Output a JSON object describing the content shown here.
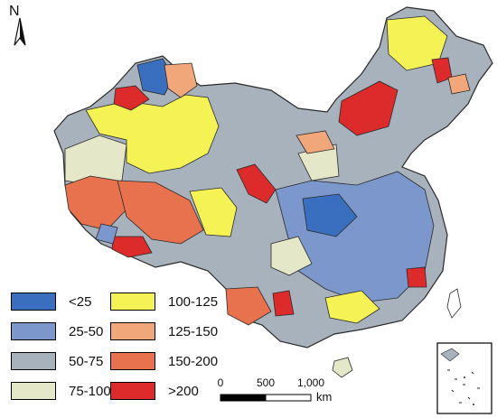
{
  "north_arrow": {
    "label": "N",
    "icon": "north-arrow-icon"
  },
  "legend": [
    {
      "label": "<25",
      "color": "#3a6fbf"
    },
    {
      "label": "25-50",
      "color": "#7b97cb"
    },
    {
      "label": "50-75",
      "color": "#a7b2bc"
    },
    {
      "label": "75-100",
      "color": "#e4e8c8"
    },
    {
      "label": "100-125",
      "color": "#f5f256"
    },
    {
      "label": "125-150",
      "color": "#f2a77a"
    },
    {
      "label": "150-200",
      "color": "#e8714e"
    },
    {
      "label": ">200",
      "color": "#dd2b2b"
    }
  ],
  "scale_bar": {
    "ticks": [
      "0",
      "500",
      "1,000"
    ],
    "unit": "km"
  },
  "colors": {
    "border": "#2a2a2a",
    "background": "#ffffff"
  }
}
